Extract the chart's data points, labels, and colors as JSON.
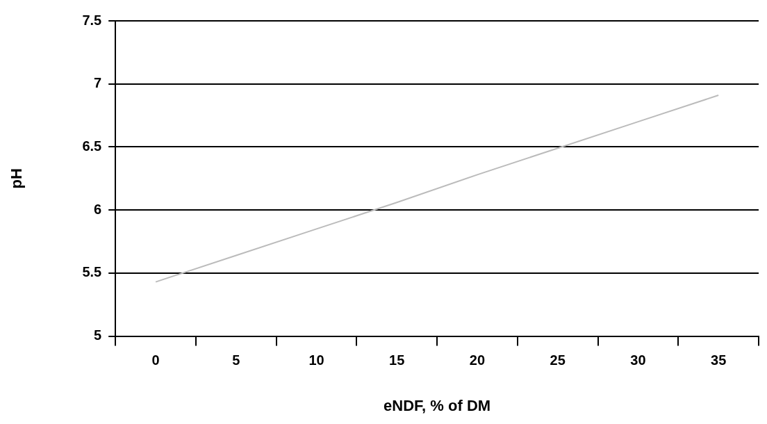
{
  "chart_data": {
    "type": "line",
    "xlabel": "eNDF, % of DM",
    "ylabel": "pH",
    "categories": [
      "0",
      "5",
      "10",
      "15",
      "20",
      "25",
      "30",
      "35"
    ],
    "series": [
      {
        "color": "#bbbbbb",
        "values": [
          5.43,
          5.64,
          5.85,
          6.06,
          6.28,
          6.49,
          6.7,
          6.91
        ]
      }
    ],
    "ylim": [
      5,
      7.5
    ],
    "yticks": [
      5,
      5.5,
      6,
      6.5,
      7,
      7.5
    ],
    "grid": "y",
    "legend": false,
    "marker": "none",
    "line_style": "solid"
  }
}
